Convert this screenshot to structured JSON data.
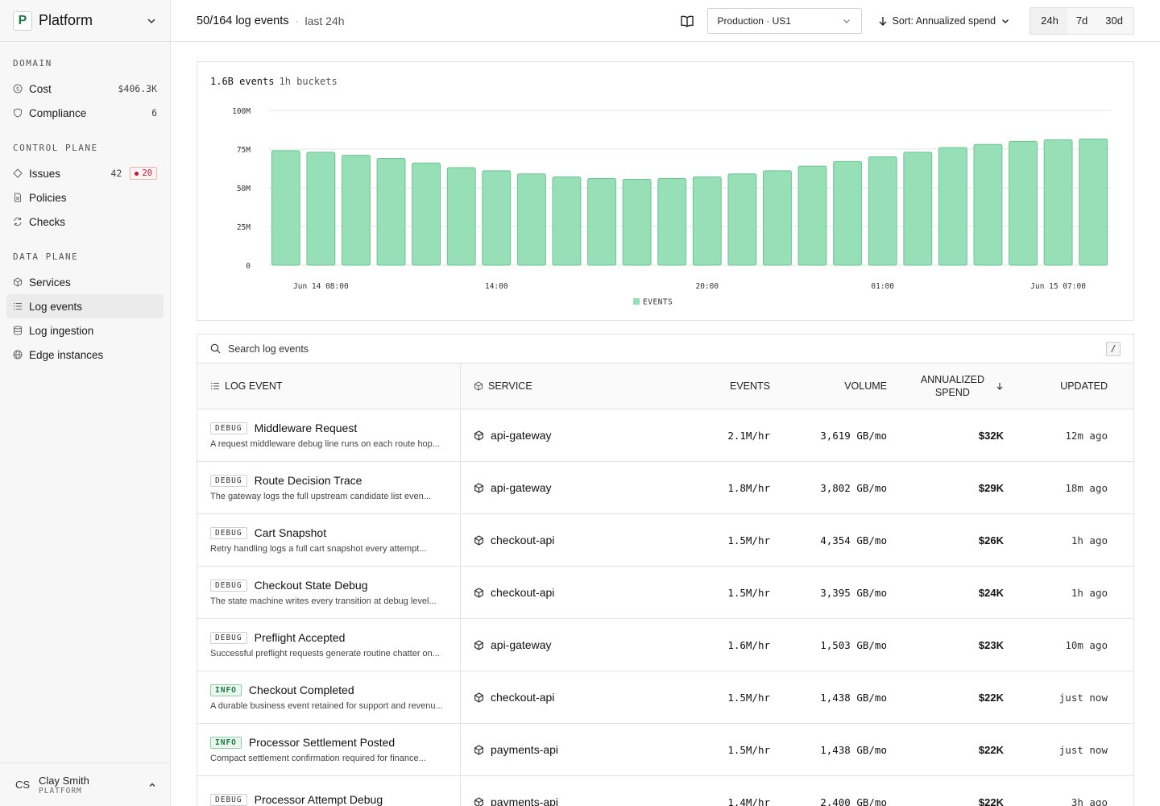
{
  "sidebar": {
    "brand": {
      "logo": "P",
      "name": "Platform"
    },
    "sections": {
      "domain": "DOMAIN",
      "control": "CONTROL PLANE",
      "data": "DATA PLANE"
    },
    "items": {
      "cost": {
        "label": "Cost",
        "meta": "$406.3K"
      },
      "compliance": {
        "label": "Compliance",
        "meta": "6"
      },
      "issues": {
        "label": "Issues",
        "meta": "42",
        "badge": "20"
      },
      "policies": {
        "label": "Policies"
      },
      "checks": {
        "label": "Checks"
      },
      "services": {
        "label": "Services"
      },
      "log_events": {
        "label": "Log events"
      },
      "log_ingestion": {
        "label": "Log ingestion"
      },
      "edge_instances": {
        "label": "Edge instances"
      }
    },
    "user": {
      "initials": "CS",
      "name": "Clay Smith",
      "org": "PLATFORM"
    }
  },
  "header": {
    "title": "50/164 log events",
    "separator": "·",
    "subtitle": "last 24h",
    "env": "Production · US1",
    "sort": "Sort: Annualized spend",
    "ranges": [
      "24h",
      "7d",
      "30d"
    ],
    "active_range": "24h"
  },
  "chart_head": {
    "total": "1.6B events",
    "bucket": "1h buckets"
  },
  "chart_data": {
    "type": "bar",
    "series": [
      {
        "name": "EVENTS",
        "color": "#97dfb6",
        "values": [
          74,
          73,
          71,
          69,
          66,
          63,
          61,
          59,
          57,
          56,
          55.5,
          56,
          57,
          59,
          61,
          64,
          67,
          70,
          73,
          76,
          78,
          80,
          81,
          81.5
        ]
      }
    ],
    "y_ticks": [
      "0",
      "25M",
      "50M",
      "75M",
      "100M"
    ],
    "ylim": [
      0,
      100
    ],
    "x_tick_labels": [
      {
        "label": "Jun 14 08:00",
        "index": 1
      },
      {
        "label": "14:00",
        "index": 6
      },
      {
        "label": "20:00",
        "index": 12
      },
      {
        "label": "01:00",
        "index": 17
      },
      {
        "label": "Jun 15 07:00",
        "index": 22
      }
    ],
    "grid": true,
    "legend": "bottom-center"
  },
  "search": {
    "placeholder": "Search log events",
    "shortcut": "/"
  },
  "table": {
    "headers": {
      "event": "LOG EVENT",
      "service": "SERVICE",
      "events": "EVENTS",
      "volume": "VOLUME",
      "spend_line1": "ANNUALIZED",
      "spend_line2": "SPEND",
      "updated": "UPDATED"
    },
    "rows": [
      {
        "level": "DEBUG",
        "name": "Middleware Request",
        "desc": "A request middleware debug line runs on each route hop...",
        "service": "api-gateway",
        "events": "2.1M/hr",
        "volume": "3,619 GB/mo",
        "spend": "$32K",
        "updated": "12m ago"
      },
      {
        "level": "DEBUG",
        "name": "Route Decision Trace",
        "desc": "The gateway logs the full upstream candidate list even...",
        "service": "api-gateway",
        "events": "1.8M/hr",
        "volume": "3,802 GB/mo",
        "spend": "$29K",
        "updated": "18m ago"
      },
      {
        "level": "DEBUG",
        "name": "Cart Snapshot",
        "desc": "Retry handling logs a full cart snapshot every attempt...",
        "service": "checkout-api",
        "events": "1.5M/hr",
        "volume": "4,354 GB/mo",
        "spend": "$26K",
        "updated": "1h ago"
      },
      {
        "level": "DEBUG",
        "name": "Checkout State Debug",
        "desc": "The state machine writes every transition at debug level...",
        "service": "checkout-api",
        "events": "1.5M/hr",
        "volume": "3,395 GB/mo",
        "spend": "$24K",
        "updated": "1h ago"
      },
      {
        "level": "DEBUG",
        "name": "Preflight Accepted",
        "desc": "Successful preflight requests generate routine chatter on...",
        "service": "api-gateway",
        "events": "1.6M/hr",
        "volume": "1,503 GB/mo",
        "spend": "$23K",
        "updated": "10m ago"
      },
      {
        "level": "INFO",
        "name": "Checkout Completed",
        "desc": "A durable business event retained for support and revenu...",
        "service": "checkout-api",
        "events": "1.5M/hr",
        "volume": "1,438 GB/mo",
        "spend": "$22K",
        "updated": "just now"
      },
      {
        "level": "INFO",
        "name": "Processor Settlement Posted",
        "desc": "Compact settlement confirmation required for finance...",
        "service": "payments-api",
        "events": "1.5M/hr",
        "volume": "1,438 GB/mo",
        "spend": "$22K",
        "updated": "just now"
      },
      {
        "level": "DEBUG",
        "name": "Processor Attempt Debug",
        "desc": "",
        "service": "payments-api",
        "events": "1.4M/hr",
        "volume": "2,400 GB/mo",
        "spend": "$22K",
        "updated": "3h ago"
      }
    ]
  },
  "colors": {
    "accent": "#1e7a46",
    "bar": "#97dfb6",
    "bar_stroke": "#6cc492",
    "danger": "#c0182c"
  }
}
